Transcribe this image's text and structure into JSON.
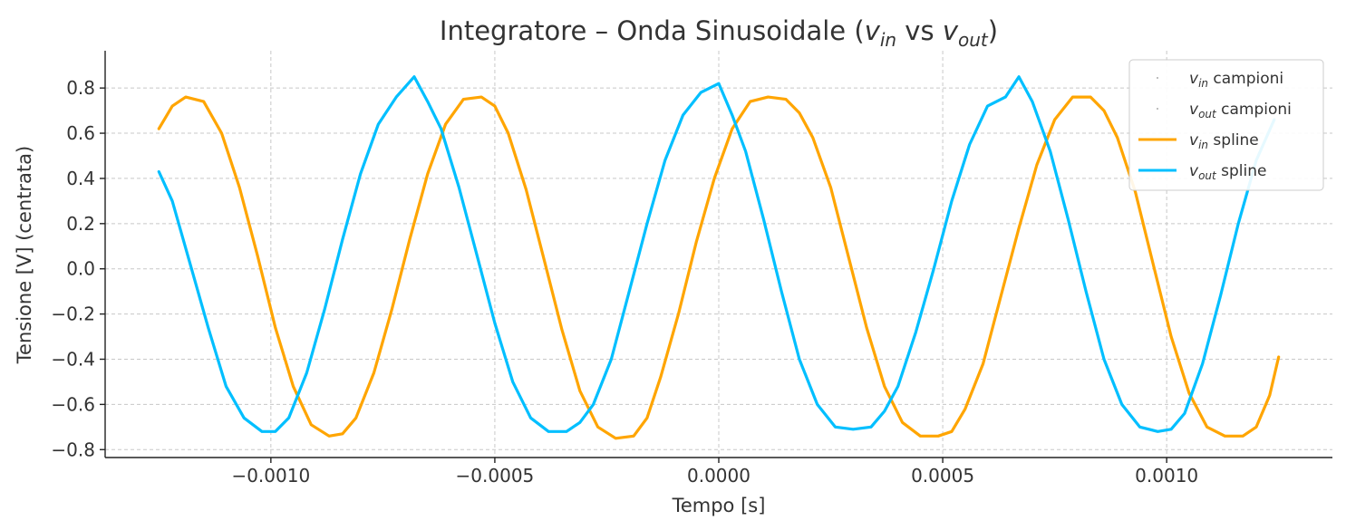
{
  "chart_data": {
    "type": "line",
    "title": "Integratore – Onda Sinusoidale (v_in vs v_out)",
    "title_parts": {
      "prefix": "Integratore – Onda Sinusoidale (",
      "v1_base": "v",
      "v1_sub": "in",
      "middle": " vs ",
      "v2_base": "v",
      "v2_sub": "out",
      "suffix": ")"
    },
    "xlabel": "Tempo [s]",
    "ylabel": "Tensione [V] (centrata)",
    "xlim": [
      -0.00137,
      0.00137
    ],
    "ylim": [
      -0.835,
      0.965
    ],
    "xticks": [
      -0.001,
      -0.0005,
      0.0,
      0.0005,
      0.001
    ],
    "xtick_labels": [
      "−0.0010",
      "−0.0005",
      "0.0000",
      "0.0005",
      "0.0010"
    ],
    "yticks": [
      -0.8,
      -0.6,
      -0.4,
      -0.2,
      0.0,
      0.2,
      0.4,
      0.6,
      0.8
    ],
    "ytick_labels": [
      "−0.8",
      "−0.6",
      "−0.4",
      "−0.2",
      "0.0",
      "0.2",
      "0.4",
      "0.6",
      "0.8"
    ],
    "grid": true,
    "legend_position": "top-right",
    "legend": [
      {
        "base": "v",
        "sub": "in",
        "text": " campioni",
        "style": "marker"
      },
      {
        "base": "v",
        "sub": "out",
        "text": " campioni",
        "style": "marker"
      },
      {
        "base": "v",
        "sub": "in",
        "text": " spline",
        "style": "line"
      },
      {
        "base": "v",
        "sub": "out",
        "text": " spline",
        "style": "line"
      }
    ],
    "series": [
      {
        "name": "v_in spline",
        "color": "#FFA500",
        "x": [
          -0.00125,
          -0.00122,
          -0.00119,
          -0.00115,
          -0.00111,
          -0.00107,
          -0.00103,
          -0.00099,
          -0.00095,
          -0.00091,
          -0.00087,
          -0.00084,
          -0.00081,
          -0.00077,
          -0.00073,
          -0.00069,
          -0.00065,
          -0.00061,
          -0.00057,
          -0.00053,
          -0.0005,
          -0.00047,
          -0.00043,
          -0.00039,
          -0.00035,
          -0.00031,
          -0.00027,
          -0.00023,
          -0.00019,
          -0.00016,
          -0.00013,
          -9e-05,
          -5e-05,
          -1e-05,
          3e-05,
          7e-05,
          0.00011,
          0.00015,
          0.00018,
          0.00021,
          0.00025,
          0.00029,
          0.00033,
          0.00037,
          0.00041,
          0.00045,
          0.00049,
          0.00052,
          0.00055,
          0.00059,
          0.00063,
          0.00067,
          0.00071,
          0.00075,
          0.00079,
          0.00083,
          0.00086,
          0.00089,
          0.00093,
          0.00097,
          0.00101,
          0.00105,
          0.00109,
          0.00113,
          0.00117,
          0.0012,
          0.00123,
          0.00125
        ],
        "y": [
          0.62,
          0.72,
          0.76,
          0.74,
          0.6,
          0.36,
          0.06,
          -0.26,
          -0.52,
          -0.69,
          -0.74,
          -0.73,
          -0.66,
          -0.46,
          -0.18,
          0.13,
          0.42,
          0.64,
          0.75,
          0.76,
          0.72,
          0.6,
          0.35,
          0.04,
          -0.27,
          -0.54,
          -0.7,
          -0.75,
          -0.74,
          -0.66,
          -0.48,
          -0.2,
          0.12,
          0.4,
          0.62,
          0.74,
          0.76,
          0.75,
          0.69,
          0.58,
          0.36,
          0.05,
          -0.26,
          -0.52,
          -0.68,
          -0.74,
          -0.74,
          -0.72,
          -0.62,
          -0.42,
          -0.12,
          0.18,
          0.46,
          0.66,
          0.76,
          0.76,
          0.7,
          0.58,
          0.34,
          0.02,
          -0.3,
          -0.55,
          -0.7,
          -0.74,
          -0.74,
          -0.7,
          -0.56,
          -0.39
        ]
      },
      {
        "name": "v_out spline",
        "color": "#00BFFF",
        "x": [
          -0.00125,
          -0.00122,
          -0.00118,
          -0.00114,
          -0.0011,
          -0.00106,
          -0.00102,
          -0.00099,
          -0.00096,
          -0.00092,
          -0.00088,
          -0.00084,
          -0.0008,
          -0.00076,
          -0.00072,
          -0.00068,
          -0.00065,
          -0.00062,
          -0.00058,
          -0.00054,
          -0.0005,
          -0.00046,
          -0.00042,
          -0.00038,
          -0.00034,
          -0.00031,
          -0.00028,
          -0.00024,
          -0.0002,
          -0.00016,
          -0.00012,
          -8e-05,
          -4e-05,
          0.0,
          3e-05,
          6e-05,
          0.0001,
          0.00014,
          0.00018,
          0.00022,
          0.00026,
          0.0003,
          0.00034,
          0.00037,
          0.0004,
          0.00044,
          0.00048,
          0.00052,
          0.00056,
          0.0006,
          0.00064,
          0.00067,
          0.0007,
          0.00074,
          0.00078,
          0.00082,
          0.00086,
          0.0009,
          0.00094,
          0.00098,
          0.00101,
          0.00104,
          0.00108,
          0.00112,
          0.00116,
          0.0012,
          0.00124
        ],
        "y": [
          0.43,
          0.3,
          0.02,
          -0.26,
          -0.52,
          -0.66,
          -0.72,
          -0.72,
          -0.66,
          -0.46,
          -0.18,
          0.13,
          0.42,
          0.64,
          0.76,
          0.85,
          0.74,
          0.62,
          0.36,
          0.06,
          -0.24,
          -0.5,
          -0.66,
          -0.72,
          -0.72,
          -0.68,
          -0.6,
          -0.4,
          -0.1,
          0.2,
          0.48,
          0.68,
          0.78,
          0.82,
          0.68,
          0.52,
          0.22,
          -0.1,
          -0.4,
          -0.6,
          -0.7,
          -0.71,
          -0.7,
          -0.63,
          -0.52,
          -0.28,
          0.0,
          0.3,
          0.55,
          0.72,
          0.76,
          0.85,
          0.74,
          0.52,
          0.22,
          -0.1,
          -0.4,
          -0.6,
          -0.7,
          -0.72,
          -0.71,
          -0.64,
          -0.42,
          -0.12,
          0.2,
          0.48,
          0.66
        ]
      }
    ]
  }
}
